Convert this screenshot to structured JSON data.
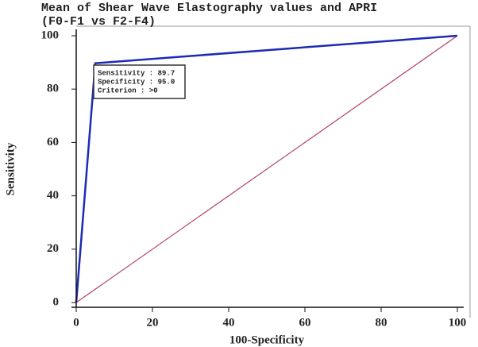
{
  "chart_data": {
    "type": "line",
    "title": "Mean of Shear Wave Elastography values and APRI",
    "subtitle": "(F0-F1 vs F2-F4)",
    "x_label": "100-Specificity",
    "y_label": "Sensitivity",
    "series": [
      {
        "color": "#1c2bb4",
        "x": [
          0,
          5,
          100
        ],
        "values": [
          0,
          89.7,
          100
        ]
      },
      {
        "color": "#b0406a",
        "x": [
          0,
          100
        ],
        "values": [
          0,
          100
        ]
      }
    ],
    "annotation": [
      "Sensitivity : 89.7",
      "Specificity : 95.0",
      "Criterion : >0"
    ],
    "xlim": [
      0,
      100
    ],
    "ylim": [
      0,
      100
    ],
    "xticks": [
      0,
      20,
      40,
      60,
      80,
      100
    ],
    "yticks": [
      0,
      20,
      40,
      60,
      80,
      100
    ]
  }
}
